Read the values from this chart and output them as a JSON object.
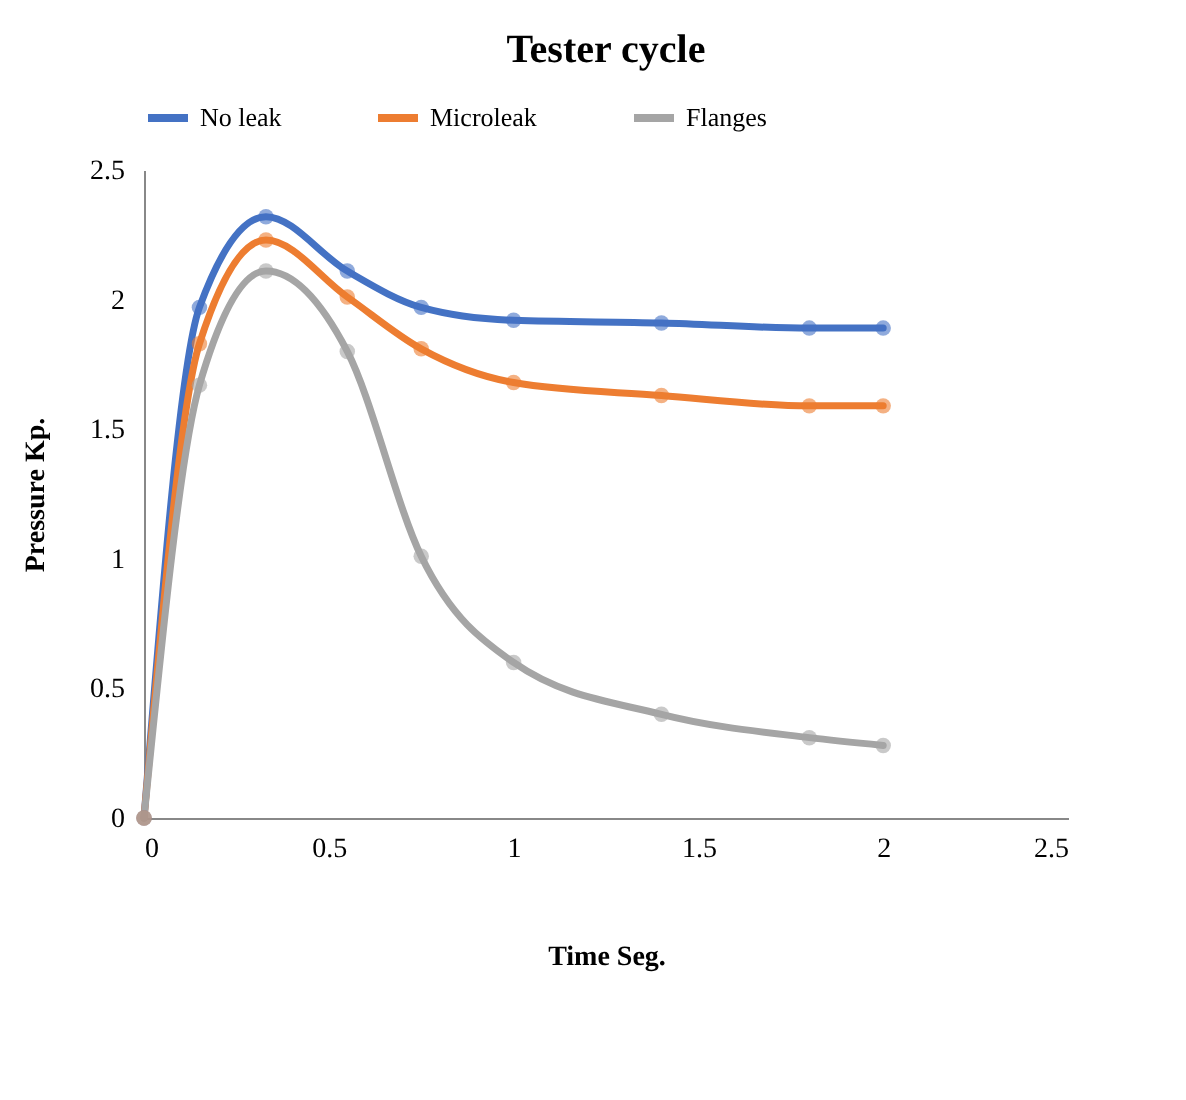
{
  "chart_data": {
    "type": "line",
    "title": "Tester cycle",
    "xlabel": "Time Seg.",
    "ylabel": "Pressure  Kp.",
    "x": [
      0,
      0.15,
      0.33,
      0.55,
      0.75,
      1,
      1.4,
      1.8,
      2
    ],
    "series": [
      {
        "name": "No leak",
        "color": "#4472c4",
        "values": [
          0,
          1.97,
          2.32,
          2.11,
          1.97,
          1.92,
          1.91,
          1.89,
          1.89
        ]
      },
      {
        "name": "Microleak",
        "color": "#ed7d31",
        "values": [
          0,
          1.83,
          2.23,
          2.01,
          1.81,
          1.68,
          1.63,
          1.59,
          1.59
        ]
      },
      {
        "name": "Flanges",
        "color": "#a5a5a5",
        "values": [
          0,
          1.67,
          2.11,
          1.8,
          1.01,
          0.6,
          0.4,
          0.31,
          0.28
        ]
      }
    ],
    "xlim": [
      0,
      2.5
    ],
    "xticks": [
      0,
      0.5,
      1,
      1.5,
      2,
      2.5
    ],
    "ylim": [
      0,
      2.5
    ],
    "yticks": [
      0,
      0.5,
      1,
      1.5,
      2,
      2.5
    ],
    "grid": false,
    "legend": "top",
    "marker": "circle",
    "line_style": "solid"
  }
}
